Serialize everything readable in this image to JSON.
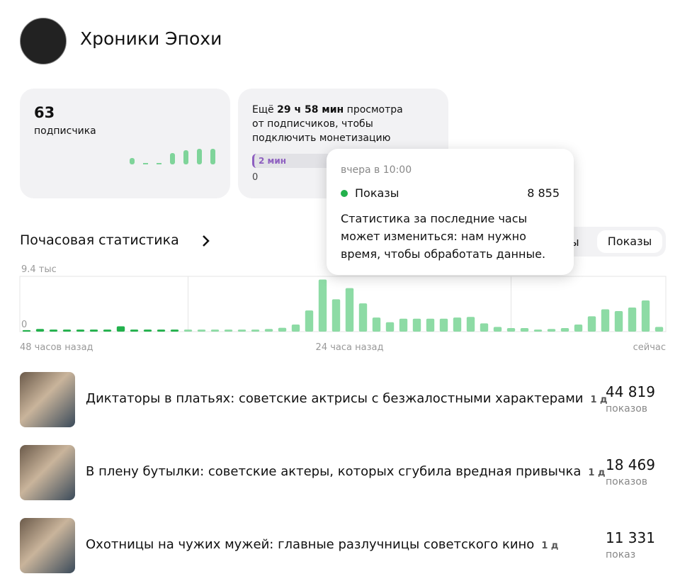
{
  "channel": {
    "name": "Хроники Эпохи"
  },
  "cards": [
    {
      "value": "63",
      "label": "подписчика"
    },
    {
      "text_before": "Ещё ",
      "bold": "29 ч 58 мин",
      "text_after": " просмотра от подписчиков, чтобы подключить монетизацию",
      "progress_label": "2 мин",
      "progress_start": "0"
    }
  ],
  "tooltip": {
    "time": "вчера в 10:00",
    "metric": "Показы",
    "value": "8 855",
    "note": "Статистика за последние часы может измениться: нам нужно время, чтобы обработать данные."
  },
  "hourly": {
    "title": "Почасовая статистика",
    "tabs": [
      "ы",
      "Показы"
    ]
  },
  "chart_data": {
    "type": "bar",
    "categories": [
      "48 часов назад",
      null,
      null,
      null,
      null,
      null,
      null,
      null,
      null,
      null,
      null,
      null,
      null,
      null,
      null,
      null,
      null,
      null,
      null,
      null,
      null,
      null,
      null,
      null,
      "24 часа назад",
      null,
      null,
      null,
      null,
      null,
      null,
      null,
      null,
      null,
      null,
      null,
      null,
      null,
      null,
      null,
      null,
      null,
      null,
      null,
      null,
      null,
      null,
      "сейчас"
    ],
    "series": [
      {
        "color": "#22b14c",
        "values": [
          250,
          450,
          350,
          350,
          350,
          350,
          350,
          900,
          350,
          350,
          350,
          350,
          null,
          null,
          null,
          null,
          null,
          null,
          null,
          null,
          null,
          null,
          null,
          null,
          null,
          null,
          null,
          null,
          null,
          null,
          null,
          null,
          null,
          null,
          null,
          null,
          null,
          null,
          null,
          null,
          null,
          null,
          null,
          null,
          null,
          null,
          null,
          null
        ]
      },
      {
        "color": "#8ddba5",
        "values": [
          null,
          null,
          null,
          null,
          null,
          null,
          null,
          null,
          null,
          null,
          null,
          null,
          350,
          350,
          350,
          350,
          350,
          350,
          450,
          650,
          1200,
          3600,
          8855,
          5500,
          7400,
          4800,
          2400,
          1600,
          2200,
          2200,
          2200,
          2200,
          2400,
          2500,
          1400,
          800,
          600,
          600,
          350,
          450,
          600,
          1200,
          2600,
          3800,
          3500,
          4100,
          5300,
          800
        ]
      }
    ],
    "ylim": [
      0,
      9400
    ],
    "yticks": [
      0,
      {
        "value": 9400,
        "label": "9.4 тыс"
      }
    ]
  },
  "articles": [
    {
      "title": "Диктаторы в платьях: советские актрисы с безжалостными характерами",
      "age": "1 д",
      "count": "44 819",
      "unit": "показов"
    },
    {
      "title": "В плену бутылки: советские актеры, которых сгубила вредная привычка",
      "age": "1 д",
      "count": "18 469",
      "unit": "показов"
    },
    {
      "title": "Охотницы на чужих мужей: главные разлучницы советского кино",
      "age": "1 д",
      "count": "11 331",
      "unit": "показ"
    }
  ]
}
